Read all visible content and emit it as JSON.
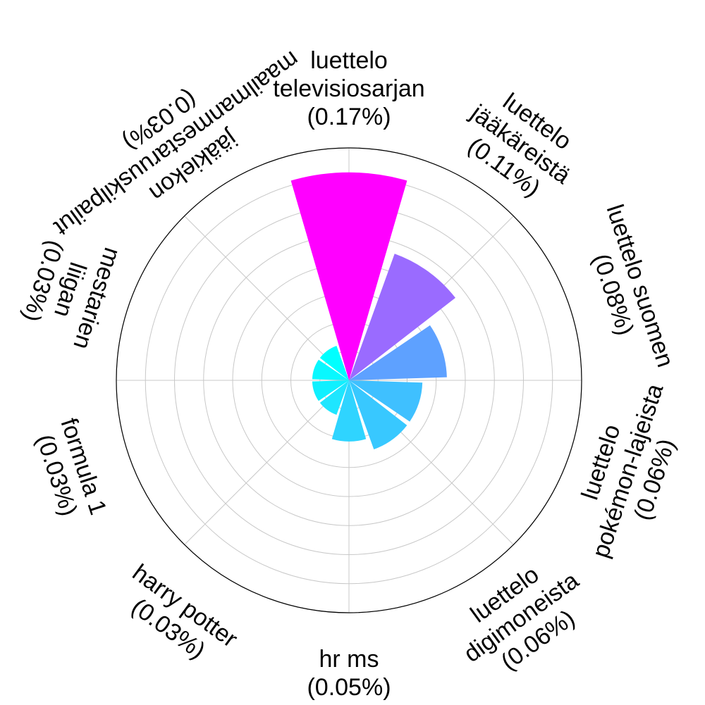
{
  "chart_data": {
    "type": "bar",
    "polar": true,
    "title": "",
    "grid": true,
    "legend": "none",
    "ylim": [
      0,
      0.19
    ],
    "categories": [
      {
        "lines": [
          "luettelo",
          "televisiosarjan"
        ],
        "pct": "(0.17%)"
      },
      {
        "lines": [
          "luettelo",
          "jääkäreistä"
        ],
        "pct": "(0.11%)"
      },
      {
        "lines": [
          "luettelo suomen"
        ],
        "pct": "(0.08%)"
      },
      {
        "lines": [
          "luettelo",
          "pokémon-lajeista"
        ],
        "pct": "(0.06%)"
      },
      {
        "lines": [
          "luettelo",
          "digimoneista"
        ],
        "pct": "(0.06%)"
      },
      {
        "lines": [
          "hr ms"
        ],
        "pct": "(0.05%)"
      },
      {
        "lines": [
          "harry potter"
        ],
        "pct": "(0.03%)"
      },
      {
        "lines": [
          "formula 1"
        ],
        "pct": "(0.03%)"
      },
      {
        "lines": [
          "mestarien",
          "liigan"
        ],
        "pct": "(0.03%)"
      },
      {
        "lines": [
          "jääkiekon",
          "maailmanmestaruuskilpailut"
        ],
        "pct": "(0.03%)"
      }
    ],
    "values": [
      0.17,
      0.11,
      0.08,
      0.06,
      0.06,
      0.05,
      0.03,
      0.03,
      0.03,
      0.03
    ],
    "colors": [
      "#ff00ff",
      "#9a6bff",
      "#5ea1ff",
      "#3fc0ff",
      "#38c8ff",
      "#2fd4ff",
      "#1ee6ff",
      "#10f0ff",
      "#08f8ff",
      "#00ffff"
    ]
  }
}
